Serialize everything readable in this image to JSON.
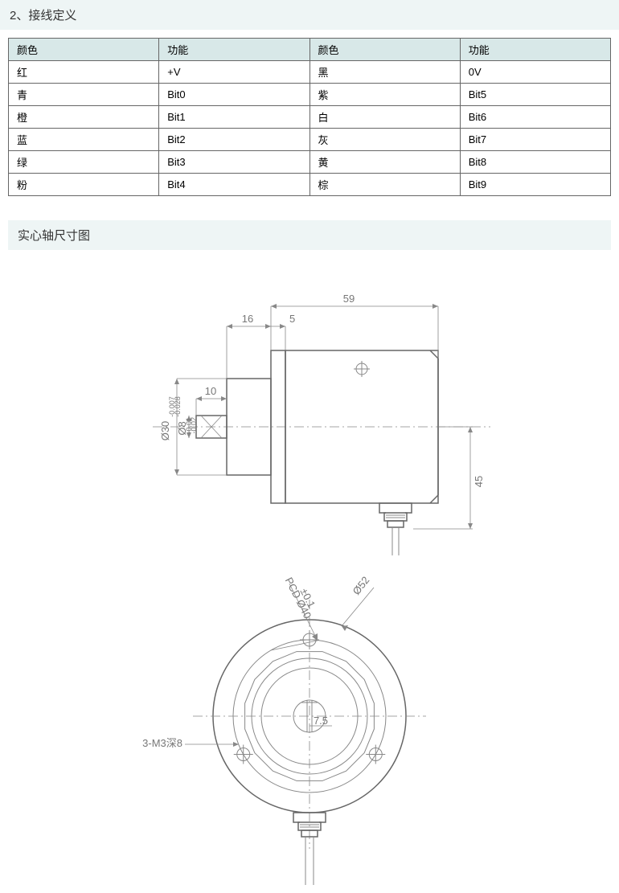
{
  "section1": {
    "title": "2、接线定义"
  },
  "table": {
    "headers": [
      "颜色",
      "功能",
      "颜色",
      "功能"
    ],
    "rows": [
      [
        "红",
        "+V",
        "黑",
        "0V"
      ],
      [
        "青",
        "Bit0",
        "紫",
        "Bit5"
      ],
      [
        "橙",
        "Bit1",
        "白",
        "Bit6"
      ],
      [
        "蓝",
        "Bit2",
        "灰",
        "Bit7"
      ],
      [
        "绿",
        "Bit3",
        "黄",
        "Bit8"
      ],
      [
        "粉",
        "Bit4",
        "棕",
        "Bit9"
      ]
    ],
    "header_bg": "#d8e8e8",
    "border_color": "#666666"
  },
  "section2": {
    "title": "实心轴尺寸图"
  },
  "side_view": {
    "dims": {
      "overall_length": "59",
      "flange_depth": "16",
      "step": "5",
      "shaft_len": "10",
      "height_half": "45",
      "flange_dia": "Ø30",
      "flange_tol_top": "-0.007",
      "flange_tol_bot": "-0.028",
      "shaft_dia": "Ø8",
      "shaft_tol_top": "-0.01",
      "shaft_tol_bot": "-0.02"
    },
    "geometry": {
      "body_w": 190,
      "body_h": 190,
      "flange_w": 55,
      "flange_h": 120,
      "step_w": 18,
      "shaft_w": 38,
      "shaft_h": 28,
      "wire_conn_w": 40,
      "wire_conn_h": 30
    },
    "line_color": "#888888"
  },
  "front_view": {
    "outer_dia": "Ø52",
    "pcd": "PCD Ø40",
    "pcd_tol": "±0.1",
    "mounting": "3-M3深8",
    "center_dim": "7.5",
    "geometry": {
      "outer_r": 120,
      "inner_r1": 95,
      "inner_r2": 72,
      "inner_r3": 20,
      "polygon_sides": 16,
      "polygon_r": 82,
      "hole_r": 8,
      "hole_pcd_r": 95
    },
    "line_color": "#888888"
  }
}
